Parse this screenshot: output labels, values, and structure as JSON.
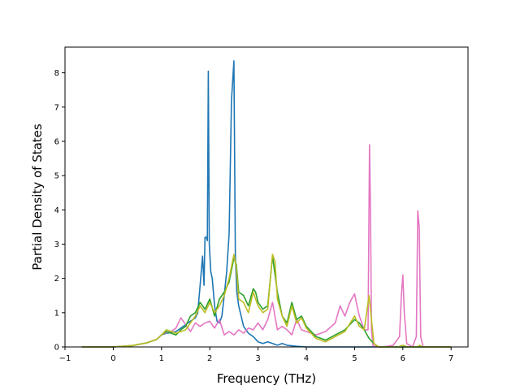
{
  "chart_data": {
    "type": "line",
    "title": "",
    "xlabel": "Frequency (THz)",
    "ylabel": "Partial Density of States",
    "xlim": [
      -1,
      7.35
    ],
    "ylim": [
      0,
      8.75
    ],
    "xticks": [
      -1,
      0,
      1,
      2,
      3,
      4,
      5,
      6,
      7
    ],
    "yticks": [
      0,
      1,
      2,
      3,
      4,
      5,
      6,
      7,
      8
    ],
    "grid": false,
    "legend": "none",
    "series": [
      {
        "color": "#1f77b4",
        "x": [
          -0.65,
          0,
          0.4,
          0.7,
          0.9,
          1.0,
          1.1,
          1.2,
          1.3,
          1.4,
          1.5,
          1.6,
          1.7,
          1.75,
          1.8,
          1.85,
          1.88,
          1.9,
          1.93,
          1.95,
          1.97,
          1.99,
          2.02,
          2.05,
          2.1,
          2.15,
          2.2,
          2.25,
          2.3,
          2.35,
          2.4,
          2.45,
          2.5,
          2.53,
          2.56,
          2.6,
          2.65,
          2.7,
          2.8,
          2.9,
          3.0,
          3.1,
          3.2,
          3.3,
          3.4,
          3.5,
          3.6,
          3.8,
          4.0,
          4.5,
          5.0,
          5.3,
          5.5,
          6.0,
          6.5,
          7.0
        ],
        "values": [
          0,
          0,
          0.04,
          0.12,
          0.22,
          0.35,
          0.4,
          0.42,
          0.45,
          0.55,
          0.65,
          0.75,
          0.85,
          1.0,
          1.8,
          2.65,
          1.8,
          3.2,
          3.2,
          3.1,
          8.05,
          3.0,
          2.2,
          2.0,
          1.2,
          0.75,
          0.7,
          0.9,
          1.5,
          2.2,
          3.3,
          7.2,
          8.35,
          2.6,
          1.6,
          1.2,
          0.9,
          0.6,
          0.4,
          0.3,
          0.15,
          0.1,
          0.15,
          0.1,
          0.05,
          0.1,
          0.05,
          0.02,
          0.0,
          0.0,
          0.0,
          0.0,
          0.0,
          0.0,
          0.0,
          0.0
        ]
      },
      {
        "color": "#e377c2",
        "x": [
          -0.65,
          0,
          0.4,
          0.7,
          0.9,
          1.0,
          1.1,
          1.2,
          1.3,
          1.4,
          1.5,
          1.6,
          1.7,
          1.8,
          1.9,
          2.0,
          2.1,
          2.2,
          2.3,
          2.4,
          2.5,
          2.6,
          2.7,
          2.8,
          2.9,
          3.0,
          3.1,
          3.2,
          3.3,
          3.4,
          3.5,
          3.6,
          3.7,
          3.8,
          3.9,
          4.0,
          4.2,
          4.4,
          4.6,
          4.7,
          4.8,
          4.9,
          5.0,
          5.05,
          5.1,
          5.2,
          5.28,
          5.31,
          5.33,
          5.35,
          5.38,
          5.45,
          5.6,
          5.8,
          5.93,
          5.97,
          6.0,
          6.03,
          6.08,
          6.2,
          6.28,
          6.31,
          6.34,
          6.37,
          6.42,
          6.6,
          7.0
        ],
        "values": [
          0,
          0,
          0.04,
          0.12,
          0.22,
          0.35,
          0.42,
          0.45,
          0.55,
          0.85,
          0.65,
          0.45,
          0.7,
          0.6,
          0.7,
          0.75,
          0.55,
          0.8,
          0.35,
          0.45,
          0.35,
          0.5,
          0.4,
          0.55,
          0.5,
          0.7,
          0.5,
          0.8,
          1.3,
          0.5,
          0.6,
          0.5,
          0.35,
          0.8,
          0.5,
          0.45,
          0.35,
          0.45,
          0.7,
          1.2,
          0.9,
          1.3,
          1.55,
          1.2,
          0.9,
          0.5,
          0.5,
          5.9,
          4.0,
          0.5,
          0.05,
          0.0,
          0.0,
          0.05,
          0.3,
          1.5,
          2.1,
          1.0,
          0.1,
          0.0,
          0.3,
          3.97,
          3.5,
          0.3,
          0.0,
          0.0,
          0.0
        ]
      },
      {
        "color": "#2ca02c",
        "x": [
          -0.65,
          0,
          0.4,
          0.7,
          0.9,
          1.0,
          1.1,
          1.2,
          1.3,
          1.4,
          1.5,
          1.6,
          1.7,
          1.8,
          1.9,
          2.0,
          2.1,
          2.2,
          2.3,
          2.4,
          2.5,
          2.55,
          2.6,
          2.7,
          2.8,
          2.9,
          2.95,
          3.0,
          3.1,
          3.2,
          3.3,
          3.4,
          3.5,
          3.6,
          3.7,
          3.8,
          3.9,
          4.0,
          4.2,
          4.4,
          4.6,
          4.8,
          5.0,
          5.1,
          5.2,
          5.3,
          5.4,
          5.5,
          6.0,
          7.0
        ],
        "values": [
          0,
          0,
          0.04,
          0.12,
          0.22,
          0.35,
          0.45,
          0.4,
          0.35,
          0.5,
          0.6,
          0.9,
          1.0,
          1.3,
          1.1,
          1.4,
          0.9,
          1.4,
          1.6,
          1.9,
          2.6,
          2.4,
          1.6,
          1.5,
          1.2,
          1.7,
          1.6,
          1.3,
          1.1,
          1.2,
          2.65,
          1.6,
          0.9,
          0.7,
          1.3,
          0.8,
          0.9,
          0.6,
          0.3,
          0.2,
          0.35,
          0.5,
          0.8,
          0.7,
          0.5,
          0.25,
          0.1,
          0.0,
          0.0,
          0.0
        ]
      },
      {
        "color": "#bcbd22",
        "x": [
          -0.65,
          0,
          0.4,
          0.7,
          0.9,
          1.0,
          1.1,
          1.2,
          1.3,
          1.4,
          1.5,
          1.6,
          1.7,
          1.8,
          1.9,
          2.0,
          2.1,
          2.2,
          2.3,
          2.4,
          2.5,
          2.55,
          2.6,
          2.7,
          2.8,
          2.9,
          2.95,
          3.0,
          3.1,
          3.2,
          3.3,
          3.35,
          3.4,
          3.5,
          3.6,
          3.7,
          3.8,
          3.9,
          4.0,
          4.2,
          4.4,
          4.6,
          4.8,
          5.0,
          5.1,
          5.2,
          5.3,
          5.4,
          5.5,
          5.9,
          6.0,
          6.1,
          6.3,
          6.35,
          6.4,
          7.0
        ],
        "values": [
          0,
          0,
          0.04,
          0.12,
          0.22,
          0.35,
          0.5,
          0.45,
          0.4,
          0.45,
          0.5,
          0.7,
          0.9,
          1.2,
          1.0,
          1.3,
          1.0,
          1.2,
          1.5,
          2.0,
          2.7,
          2.3,
          1.4,
          1.3,
          1.0,
          1.6,
          1.4,
          1.2,
          1.0,
          1.1,
          2.7,
          2.5,
          1.4,
          0.9,
          0.6,
          1.2,
          0.7,
          0.85,
          0.55,
          0.25,
          0.15,
          0.3,
          0.45,
          0.9,
          0.6,
          0.5,
          1.5,
          0.1,
          0.0,
          0.0,
          0.05,
          0.0,
          0.0,
          0.05,
          0.0,
          0.0
        ]
      }
    ]
  }
}
